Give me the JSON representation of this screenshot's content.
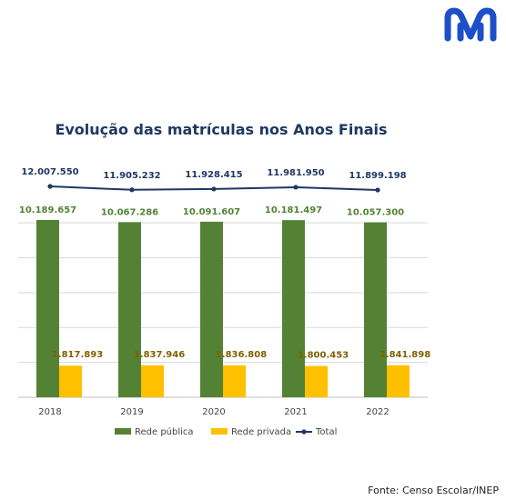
{
  "brand": {
    "logo_icon": "brand-m-logo-icon",
    "logo_color": "#1d4fc9"
  },
  "source_text": "Fonte: Censo Escolar/INEP",
  "chart_data": {
    "type": "bar",
    "title": "Evolução das matrículas nos Anos Finais",
    "categories": [
      "2018",
      "2019",
      "2020",
      "2021",
      "2022"
    ],
    "series": [
      {
        "name": "Rede pública",
        "kind": "bar",
        "color": "#548235",
        "label_color": "#548235",
        "values": [
          10189657,
          10067286,
          10091607,
          10181497,
          10057300
        ],
        "labels": [
          "10.189.657",
          "10.067.286",
          "10.091.607",
          "10.181.497",
          "10.057.300"
        ]
      },
      {
        "name": "Rede privada",
        "kind": "bar",
        "color": "#ffc000",
        "label_color": "#806000",
        "values": [
          1817893,
          1837946,
          1836808,
          1800453,
          1841898
        ],
        "labels": [
          "1.817.893",
          "1.837.946",
          "1.836.808",
          "1.800.453",
          "1.841.898"
        ]
      },
      {
        "name": "Total",
        "kind": "line",
        "color": "#1f3864",
        "label_color": "#1f3864",
        "values": [
          12007550,
          11905232,
          11928415,
          11981950,
          11899198
        ],
        "labels": [
          "12.007.550",
          "11.905.232",
          "11.928.415",
          "11.981.950",
          "11.899.198"
        ]
      }
    ],
    "gridlines": true,
    "legend": "bottom",
    "ylim": [
      0,
      12000000
    ]
  }
}
